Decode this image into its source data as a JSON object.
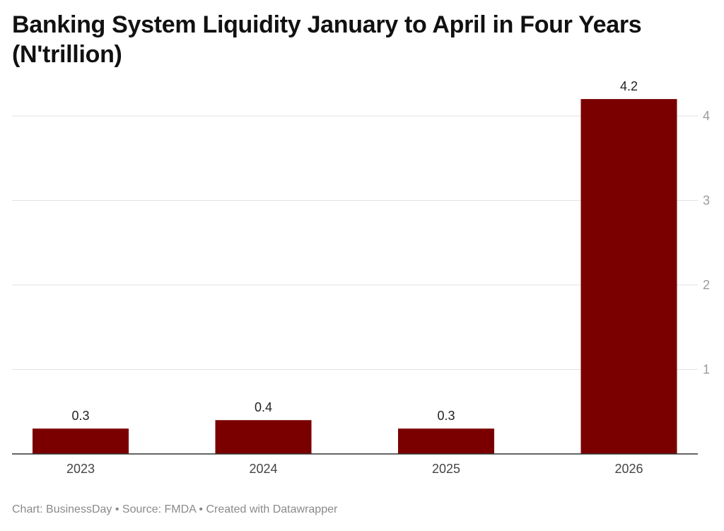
{
  "title": "Banking System Liquidity January to April in Four Years (N'trillion)",
  "footer": {
    "chart": "Chart: BusinessDay",
    "source": "Source: FMDA",
    "created": "Created with Datawrapper",
    "separator": "•"
  },
  "chart_data": {
    "type": "bar",
    "title": "Banking System Liquidity January to April in Four Years (N'trillion)",
    "categories": [
      "2023",
      "2024",
      "2025",
      "2026"
    ],
    "values": [
      0.3,
      0.4,
      0.3,
      4.2
    ],
    "value_labels": [
      "0.3",
      "0.4",
      "0.3",
      "4.2"
    ],
    "bar_color": "#7a0000",
    "yticks": [
      "1",
      "2",
      "3",
      "4"
    ],
    "ylim": [
      0,
      4.2
    ],
    "yaxis_position": "right",
    "grid": true,
    "xlabel": "",
    "ylabel": ""
  }
}
